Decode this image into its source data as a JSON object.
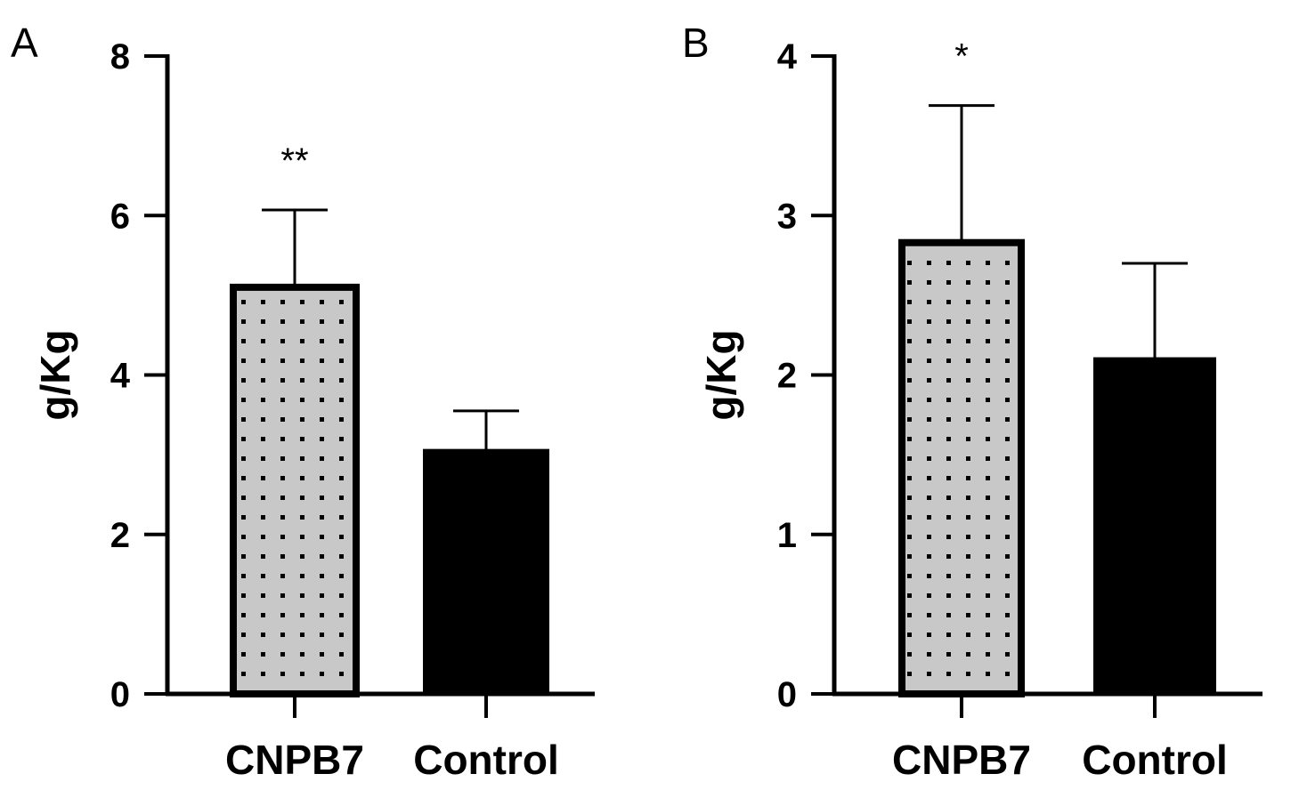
{
  "chart_data": [
    {
      "type": "bar",
      "panel": "A",
      "categories": [
        "CNPB7",
        "Control"
      ],
      "values": [
        5.1,
        3.05
      ],
      "errors": [
        0.97,
        0.5
      ],
      "significance": [
        "**",
        ""
      ],
      "ylabel": "g/Kg",
      "ylim": [
        0,
        8
      ],
      "yticks": [
        "0",
        "2",
        "4",
        "6",
        "8"
      ],
      "fills": [
        "dotted-gray",
        "solid-black"
      ],
      "colors": {
        "dotted_fill": "#c8c8c8",
        "solid_fill": "#000000"
      }
    },
    {
      "type": "bar",
      "panel": "B",
      "categories": [
        "CNPB7",
        "Control"
      ],
      "values": [
        2.83,
        2.1
      ],
      "errors": [
        0.86,
        0.6
      ],
      "significance": [
        "*",
        ""
      ],
      "ylabel": "g/Kg",
      "ylim": [
        0,
        4
      ],
      "yticks": [
        "0",
        "1",
        "2",
        "3",
        "4"
      ],
      "fills": [
        "dotted-gray",
        "solid-black"
      ],
      "colors": {
        "dotted_fill": "#c8c8c8",
        "solid_fill": "#000000"
      }
    }
  ]
}
